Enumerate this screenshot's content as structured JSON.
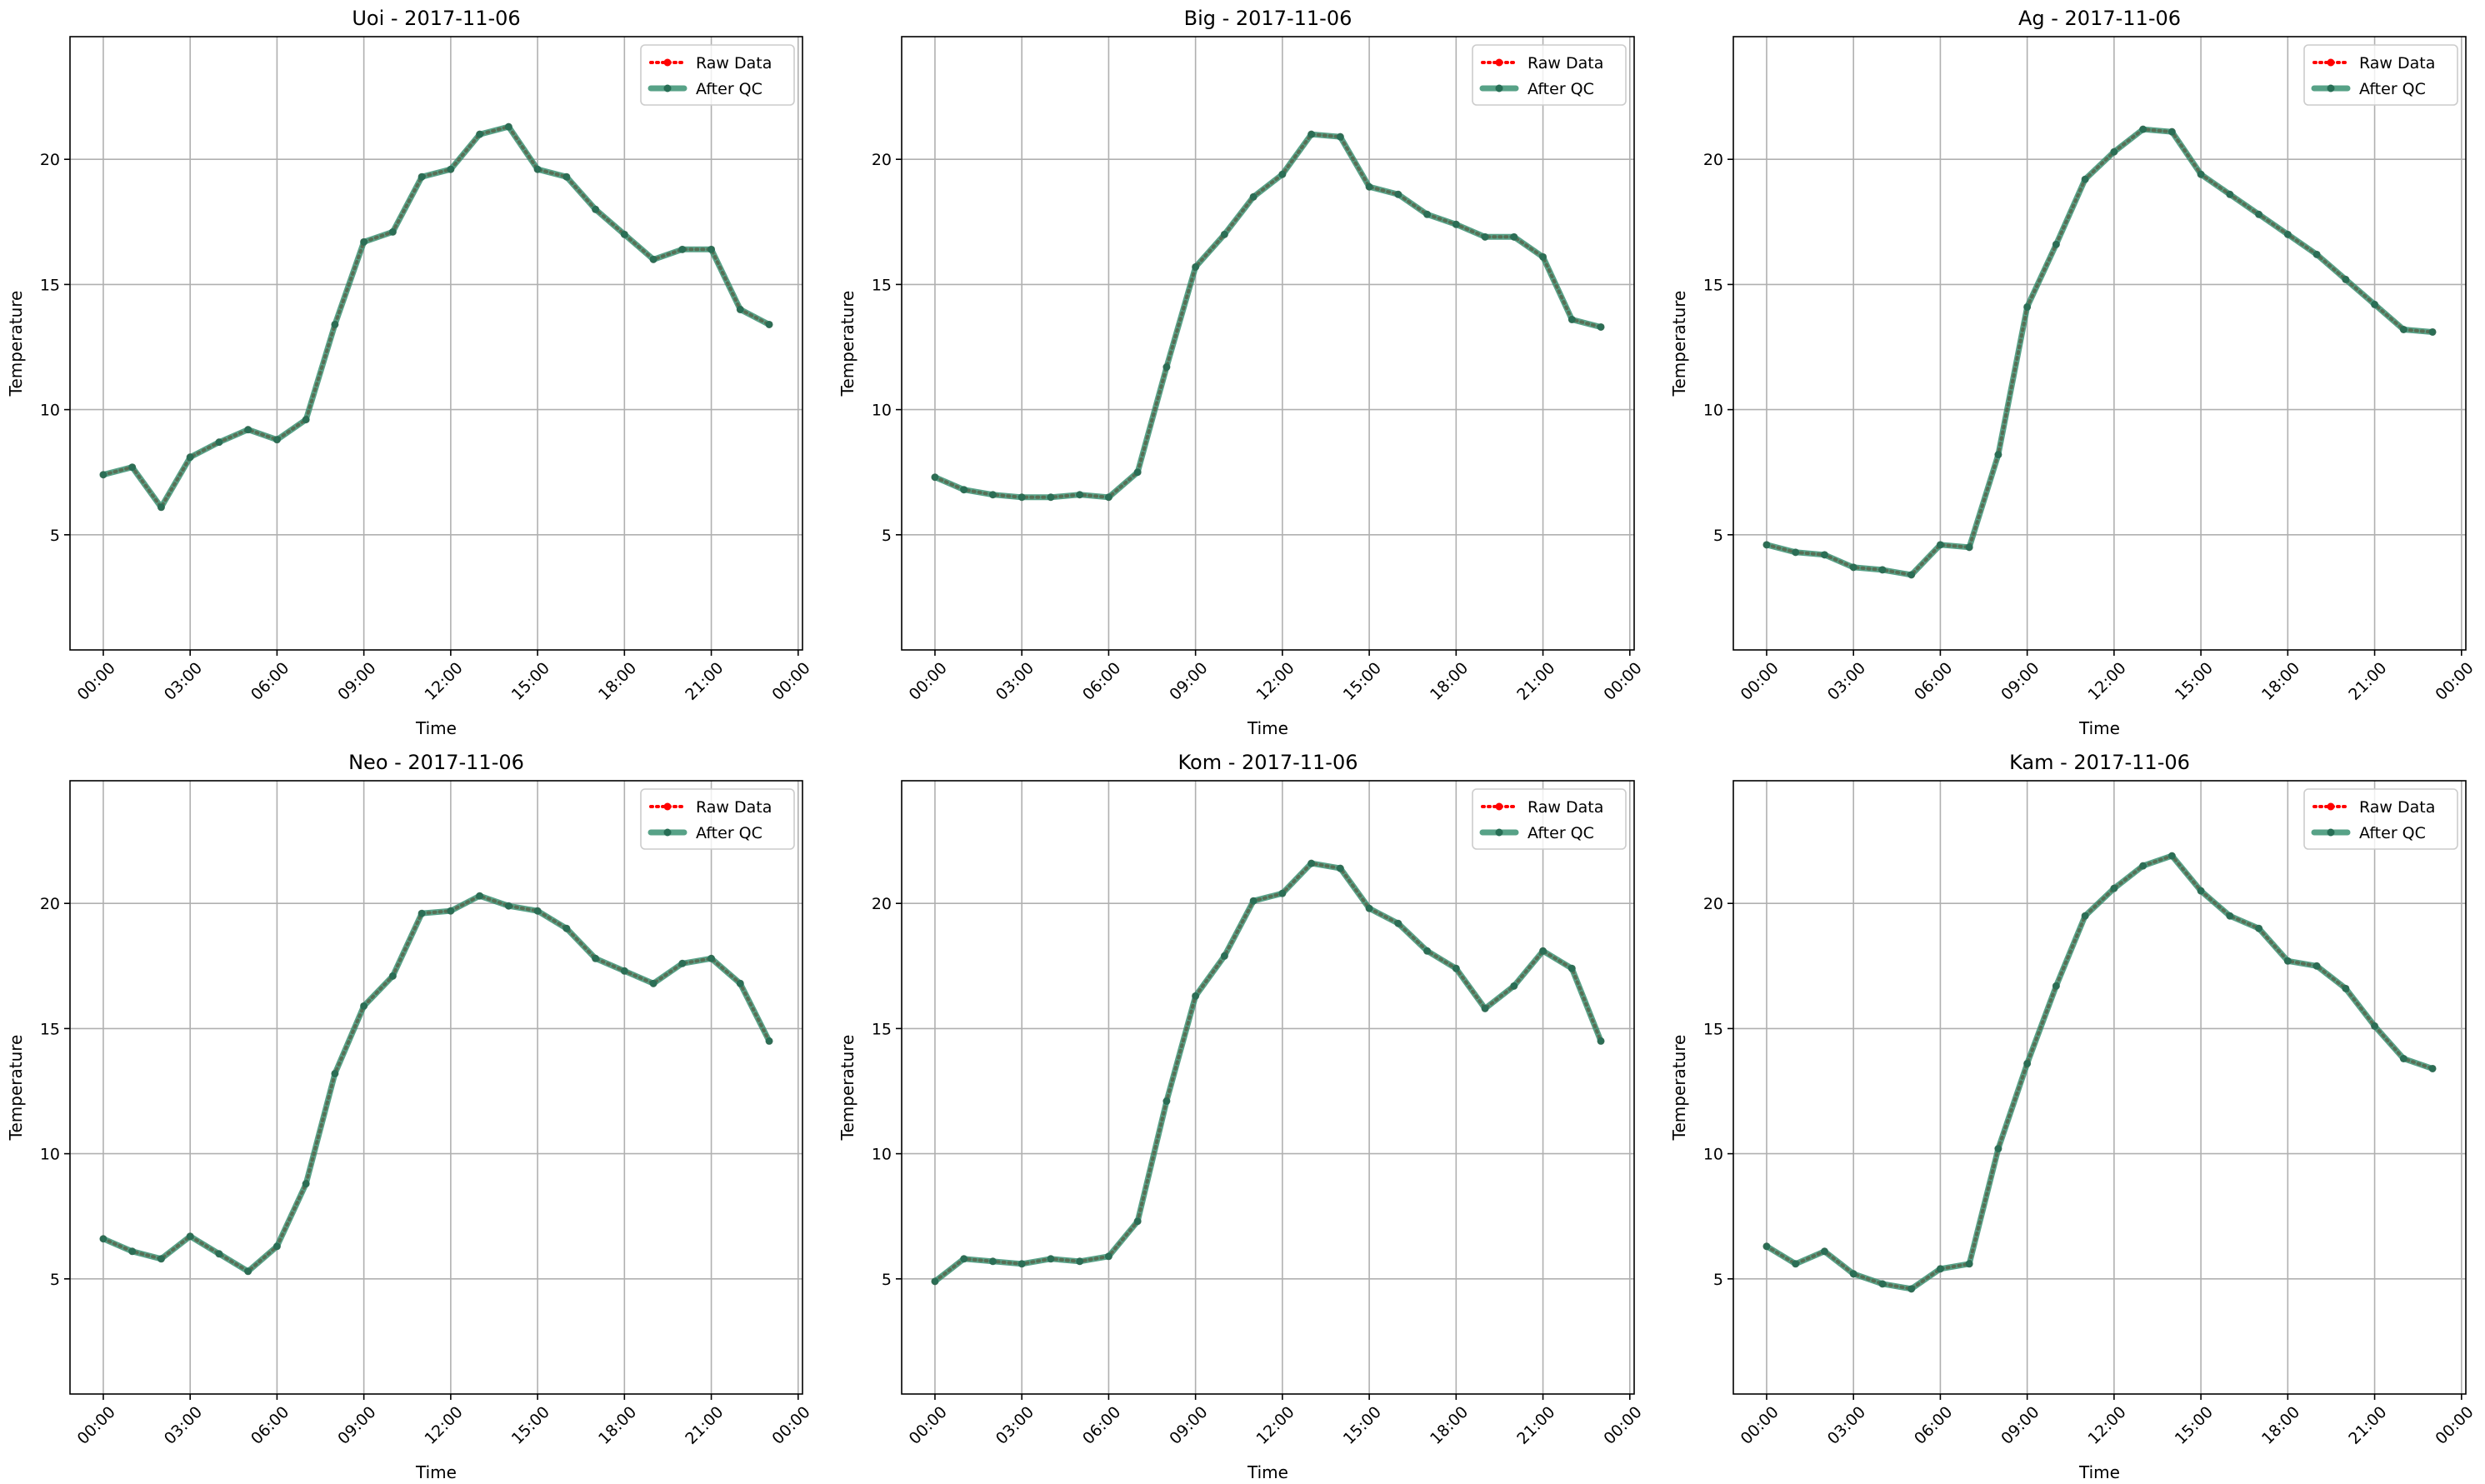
{
  "chart_data": [
    {
      "type": "line",
      "title": "Uoi - 2017-11-06",
      "xlabel": "Time",
      "ylabel": "Temperature",
      "x": [
        0,
        1,
        2,
        3,
        4,
        5,
        6,
        7,
        8,
        9,
        10,
        11,
        12,
        13,
        14,
        15,
        16,
        17,
        18,
        19,
        20,
        21,
        22,
        23
      ],
      "xlim": [
        -1.15,
        24.15
      ],
      "xticks": [
        {
          "value": 0,
          "label": "00:00"
        },
        {
          "value": 3,
          "label": "03:00"
        },
        {
          "value": 6,
          "label": "06:00"
        },
        {
          "value": 9,
          "label": "09:00"
        },
        {
          "value": 12,
          "label": "12:00"
        },
        {
          "value": 15,
          "label": "15:00"
        },
        {
          "value": 18,
          "label": "18:00"
        },
        {
          "value": 21,
          "label": "21:00"
        },
        {
          "value": 24,
          "label": "00:00"
        }
      ],
      "ylim": [
        0.4,
        24.9
      ],
      "yticks": [
        5,
        10,
        15,
        20
      ],
      "grid": true,
      "legend": "upper right",
      "series": [
        {
          "name": "Raw Data",
          "color": "#ff0000",
          "values": [
            7.4,
            7.7,
            6.1,
            8.1,
            8.7,
            9.2,
            8.8,
            9.6,
            13.4,
            16.7,
            17.1,
            19.3,
            19.6,
            21.0,
            21.3,
            19.6,
            19.3,
            18.0,
            17.0,
            16.0,
            16.4,
            16.4,
            14.0,
            13.4
          ]
        },
        {
          "name": "After QC",
          "color": "#2e8b6a",
          "values": [
            7.4,
            7.7,
            6.1,
            8.1,
            8.7,
            9.2,
            8.8,
            9.6,
            13.4,
            16.7,
            17.1,
            19.3,
            19.6,
            21.0,
            21.3,
            19.6,
            19.3,
            18.0,
            17.0,
            16.0,
            16.4,
            16.4,
            14.0,
            13.4
          ]
        }
      ]
    },
    {
      "type": "line",
      "title": "Big - 2017-11-06",
      "xlabel": "Time",
      "ylabel": "Temperature",
      "x": [
        0,
        1,
        2,
        3,
        4,
        5,
        6,
        7,
        8,
        9,
        10,
        11,
        12,
        13,
        14,
        15,
        16,
        17,
        18,
        19,
        20,
        21,
        22,
        23
      ],
      "xlim": [
        -1.15,
        24.15
      ],
      "xticks": [
        {
          "value": 0,
          "label": "00:00"
        },
        {
          "value": 3,
          "label": "03:00"
        },
        {
          "value": 6,
          "label": "06:00"
        },
        {
          "value": 9,
          "label": "09:00"
        },
        {
          "value": 12,
          "label": "12:00"
        },
        {
          "value": 15,
          "label": "15:00"
        },
        {
          "value": 18,
          "label": "18:00"
        },
        {
          "value": 21,
          "label": "21:00"
        },
        {
          "value": 24,
          "label": "00:00"
        }
      ],
      "ylim": [
        0.4,
        24.9
      ],
      "yticks": [
        5,
        10,
        15,
        20
      ],
      "grid": true,
      "legend": "upper right",
      "series": [
        {
          "name": "Raw Data",
          "color": "#ff0000",
          "values": [
            7.3,
            6.8,
            6.6,
            6.5,
            6.5,
            6.6,
            6.5,
            7.5,
            11.7,
            15.7,
            17.0,
            18.5,
            19.4,
            21.0,
            20.9,
            18.9,
            18.6,
            17.8,
            17.4,
            16.9,
            16.9,
            16.1,
            13.6,
            13.3
          ]
        },
        {
          "name": "After QC",
          "color": "#2e8b6a",
          "values": [
            7.3,
            6.8,
            6.6,
            6.5,
            6.5,
            6.6,
            6.5,
            7.5,
            11.7,
            15.7,
            17.0,
            18.5,
            19.4,
            21.0,
            20.9,
            18.9,
            18.6,
            17.8,
            17.4,
            16.9,
            16.9,
            16.1,
            13.6,
            13.3
          ]
        }
      ]
    },
    {
      "type": "line",
      "title": "Ag - 2017-11-06",
      "xlabel": "Time",
      "ylabel": "Temperature",
      "x": [
        0,
        1,
        2,
        3,
        4,
        5,
        6,
        7,
        8,
        9,
        10,
        11,
        12,
        13,
        14,
        15,
        16,
        17,
        18,
        19,
        20,
        21,
        22,
        23
      ],
      "xlim": [
        -1.15,
        24.15
      ],
      "xticks": [
        {
          "value": 0,
          "label": "00:00"
        },
        {
          "value": 3,
          "label": "03:00"
        },
        {
          "value": 6,
          "label": "06:00"
        },
        {
          "value": 9,
          "label": "09:00"
        },
        {
          "value": 12,
          "label": "12:00"
        },
        {
          "value": 15,
          "label": "15:00"
        },
        {
          "value": 18,
          "label": "18:00"
        },
        {
          "value": 21,
          "label": "21:00"
        },
        {
          "value": 24,
          "label": "00:00"
        }
      ],
      "ylim": [
        0.4,
        24.9
      ],
      "yticks": [
        5,
        10,
        15,
        20
      ],
      "grid": true,
      "legend": "upper right",
      "series": [
        {
          "name": "Raw Data",
          "color": "#ff0000",
          "values": [
            4.6,
            4.3,
            4.2,
            3.7,
            3.6,
            3.4,
            4.6,
            4.5,
            8.2,
            14.1,
            16.6,
            19.2,
            20.3,
            21.2,
            21.1,
            19.4,
            18.6,
            17.8,
            17.0,
            16.2,
            15.2,
            14.2,
            13.2,
            13.1
          ]
        },
        {
          "name": "After QC",
          "color": "#2e8b6a",
          "values": [
            4.6,
            4.3,
            4.2,
            3.7,
            3.6,
            3.4,
            4.6,
            4.5,
            8.2,
            14.1,
            16.6,
            19.2,
            20.3,
            21.2,
            21.1,
            19.4,
            18.6,
            17.8,
            17.0,
            16.2,
            15.2,
            14.2,
            13.2,
            13.1
          ]
        }
      ]
    },
    {
      "type": "line",
      "title": "Neo - 2017-11-06",
      "xlabel": "Time",
      "ylabel": "Temperature",
      "x": [
        0,
        1,
        2,
        3,
        4,
        5,
        6,
        7,
        8,
        9,
        10,
        11,
        12,
        13,
        14,
        15,
        16,
        17,
        18,
        19,
        20,
        21,
        22,
        23
      ],
      "xlim": [
        -1.15,
        24.15
      ],
      "xticks": [
        {
          "value": 0,
          "label": "00:00"
        },
        {
          "value": 3,
          "label": "03:00"
        },
        {
          "value": 6,
          "label": "06:00"
        },
        {
          "value": 9,
          "label": "09:00"
        },
        {
          "value": 12,
          "label": "12:00"
        },
        {
          "value": 15,
          "label": "15:00"
        },
        {
          "value": 18,
          "label": "18:00"
        },
        {
          "value": 21,
          "label": "21:00"
        },
        {
          "value": 24,
          "label": "00:00"
        }
      ],
      "ylim": [
        0.4,
        24.9
      ],
      "yticks": [
        5,
        10,
        15,
        20
      ],
      "grid": true,
      "legend": "upper right",
      "series": [
        {
          "name": "Raw Data",
          "color": "#ff0000",
          "values": [
            6.6,
            6.1,
            5.8,
            6.7,
            6.0,
            5.3,
            6.3,
            8.8,
            13.2,
            15.9,
            17.1,
            19.6,
            19.7,
            20.3,
            19.9,
            19.7,
            19.0,
            17.8,
            17.3,
            16.8,
            17.6,
            17.8,
            16.8,
            14.5
          ]
        },
        {
          "name": "After QC",
          "color": "#2e8b6a",
          "values": [
            6.6,
            6.1,
            5.8,
            6.7,
            6.0,
            5.3,
            6.3,
            8.8,
            13.2,
            15.9,
            17.1,
            19.6,
            19.7,
            20.3,
            19.9,
            19.7,
            19.0,
            17.8,
            17.3,
            16.8,
            17.6,
            17.8,
            16.8,
            14.5
          ]
        }
      ]
    },
    {
      "type": "line",
      "title": "Kom - 2017-11-06",
      "xlabel": "Time",
      "ylabel": "Temperature",
      "x": [
        0,
        1,
        2,
        3,
        4,
        5,
        6,
        7,
        8,
        9,
        10,
        11,
        12,
        13,
        14,
        15,
        16,
        17,
        18,
        19,
        20,
        21,
        22,
        23
      ],
      "xlim": [
        -1.15,
        24.15
      ],
      "xticks": [
        {
          "value": 0,
          "label": "00:00"
        },
        {
          "value": 3,
          "label": "03:00"
        },
        {
          "value": 6,
          "label": "06:00"
        },
        {
          "value": 9,
          "label": "09:00"
        },
        {
          "value": 12,
          "label": "12:00"
        },
        {
          "value": 15,
          "label": "15:00"
        },
        {
          "value": 18,
          "label": "18:00"
        },
        {
          "value": 21,
          "label": "21:00"
        },
        {
          "value": 24,
          "label": "00:00"
        }
      ],
      "ylim": [
        0.4,
        24.9
      ],
      "yticks": [
        5,
        10,
        15,
        20
      ],
      "grid": true,
      "legend": "upper right",
      "series": [
        {
          "name": "Raw Data",
          "color": "#ff0000",
          "values": [
            4.9,
            5.8,
            5.7,
            5.6,
            5.8,
            5.7,
            5.9,
            7.3,
            12.1,
            16.3,
            17.9,
            20.1,
            20.4,
            21.6,
            21.4,
            19.8,
            19.2,
            18.1,
            17.4,
            15.8,
            16.7,
            18.1,
            17.4,
            14.5
          ]
        },
        {
          "name": "After QC",
          "color": "#2e8b6a",
          "values": [
            4.9,
            5.8,
            5.7,
            5.6,
            5.8,
            5.7,
            5.9,
            7.3,
            12.1,
            16.3,
            17.9,
            20.1,
            20.4,
            21.6,
            21.4,
            19.8,
            19.2,
            18.1,
            17.4,
            15.8,
            16.7,
            18.1,
            17.4,
            14.5
          ]
        }
      ]
    },
    {
      "type": "line",
      "title": "Kam - 2017-11-06",
      "xlabel": "Time",
      "ylabel": "Temperature",
      "x": [
        0,
        1,
        2,
        3,
        4,
        5,
        6,
        7,
        8,
        9,
        10,
        11,
        12,
        13,
        14,
        15,
        16,
        17,
        18,
        19,
        20,
        21,
        22,
        23
      ],
      "xlim": [
        -1.15,
        24.15
      ],
      "xticks": [
        {
          "value": 0,
          "label": "00:00"
        },
        {
          "value": 3,
          "label": "03:00"
        },
        {
          "value": 6,
          "label": "06:00"
        },
        {
          "value": 9,
          "label": "09:00"
        },
        {
          "value": 12,
          "label": "12:00"
        },
        {
          "value": 15,
          "label": "15:00"
        },
        {
          "value": 18,
          "label": "18:00"
        },
        {
          "value": 21,
          "label": "21:00"
        },
        {
          "value": 24,
          "label": "00:00"
        }
      ],
      "ylim": [
        0.4,
        24.9
      ],
      "yticks": [
        5,
        10,
        15,
        20
      ],
      "grid": true,
      "legend": "upper right",
      "series": [
        {
          "name": "Raw Data",
          "color": "#ff0000",
          "values": [
            6.3,
            5.6,
            6.1,
            5.2,
            4.8,
            4.6,
            5.4,
            5.6,
            10.2,
            13.6,
            16.7,
            19.5,
            20.6,
            21.5,
            21.9,
            20.5,
            19.5,
            19.0,
            17.7,
            17.5,
            16.6,
            15.1,
            13.8,
            13.4
          ]
        },
        {
          "name": "After QC",
          "color": "#2e8b6a",
          "values": [
            6.3,
            5.6,
            6.1,
            5.2,
            4.8,
            4.6,
            5.4,
            5.6,
            10.2,
            13.6,
            16.7,
            19.5,
            20.6,
            21.5,
            21.9,
            20.5,
            19.5,
            19.0,
            17.7,
            17.5,
            16.6,
            15.1,
            13.8,
            13.4
          ]
        }
      ]
    }
  ]
}
